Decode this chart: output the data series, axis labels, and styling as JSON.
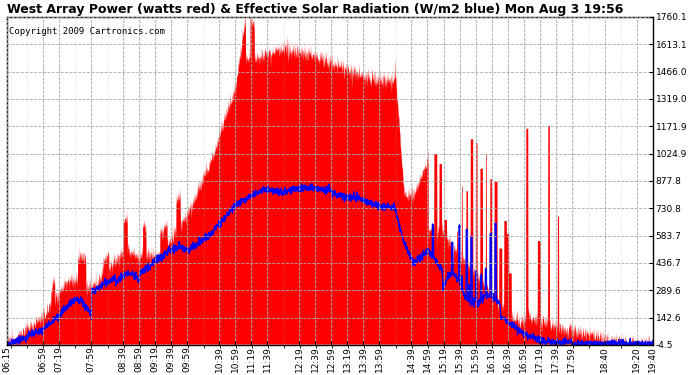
{
  "title": "West Array Power (watts red) & Effective Solar Radiation (W/m2 blue) Mon Aug 3 19:56",
  "copyright": "Copyright 2009 Cartronics.com",
  "background_color": "#ffffff",
  "plot_bg_color": "#ffffff",
  "grid_color": "#aaaaaa",
  "ylim": [
    -4.5,
    1760.1
  ],
  "yticks": [
    1760.1,
    1613.1,
    1466.0,
    1319.0,
    1171.9,
    1024.9,
    877.8,
    730.8,
    583.7,
    436.7,
    289.6,
    142.6,
    -4.5
  ],
  "time_labels": [
    "06:15",
    "06:59",
    "07:19",
    "07:59",
    "08:39",
    "08:59",
    "09:19",
    "09:39",
    "09:59",
    "10:39",
    "10:59",
    "11:19",
    "11:39",
    "12:19",
    "12:39",
    "12:59",
    "13:19",
    "13:39",
    "13:59",
    "14:39",
    "14:59",
    "15:19",
    "15:39",
    "15:59",
    "16:19",
    "16:39",
    "16:59",
    "17:19",
    "17:39",
    "17:59",
    "18:40",
    "19:20",
    "19:40"
  ],
  "fill_color": "#ff0000",
  "line_color": "#0000ff",
  "title_fontsize": 9,
  "axis_fontsize": 6.5,
  "copyright_fontsize": 6.5
}
